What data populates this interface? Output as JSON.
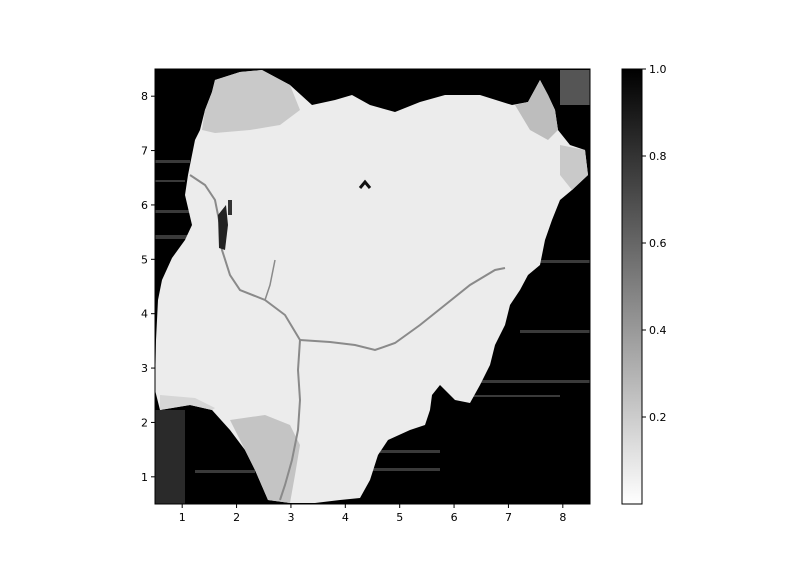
{
  "chart_data": {
    "type": "heatmap",
    "title": "",
    "xlabel": "",
    "ylabel": "",
    "xlim": [
      0.5,
      8.5
    ],
    "ylim": [
      0.5,
      8.5
    ],
    "x_ticks": [
      1,
      2,
      3,
      4,
      5,
      6,
      7,
      8
    ],
    "y_ticks": [
      1,
      2,
      3,
      4,
      5,
      6,
      7,
      8
    ],
    "colormap": "gray_r",
    "colorbar": {
      "range": [
        0.0,
        1.0
      ],
      "ticks": [
        0.2,
        0.4,
        0.6,
        0.8,
        1.0
      ],
      "tick_labels": [
        "0.2",
        "0.4",
        "0.6",
        "0.8",
        "1.0"
      ]
    },
    "grid": false,
    "description_of_field": "Map-shaped region with values near 0.05 inside the country outline, 1.0 outside, some regions ~0.2-0.3"
  },
  "colors": {
    "background": "#ffffff",
    "outside_value": "#000000",
    "land_low": "#ececec",
    "land_mid": "#c9c9c9",
    "river": "#8a8a8a"
  }
}
